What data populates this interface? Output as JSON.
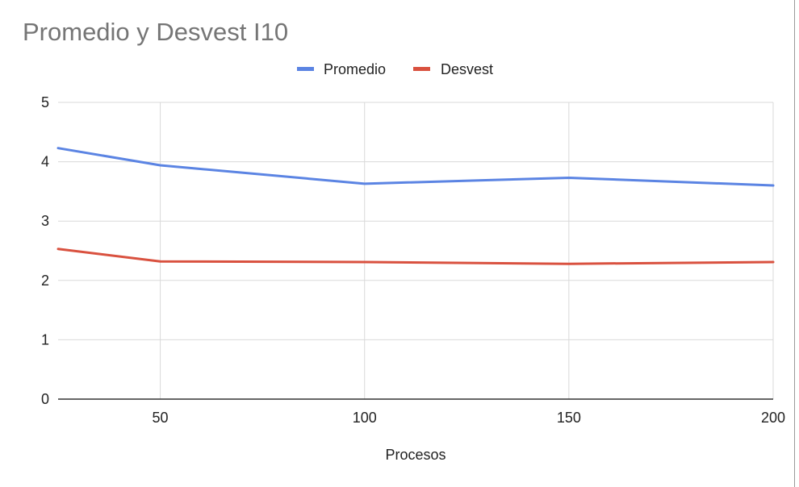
{
  "chart_data": {
    "type": "line",
    "title": "Promedio y Desvest I10",
    "xlabel": "Procesos",
    "ylabel": "",
    "x": [
      25,
      50,
      100,
      150,
      200
    ],
    "xlim": [
      25,
      200
    ],
    "xticks": [
      "50",
      "100",
      "150",
      "200"
    ],
    "xtick_values": [
      50,
      100,
      150,
      200
    ],
    "ylim": [
      0,
      5
    ],
    "yticks": [
      "0",
      "1",
      "2",
      "3",
      "4",
      "5"
    ],
    "ytick_values": [
      0,
      1,
      2,
      3,
      4,
      5
    ],
    "grid": true,
    "legend_position": "top",
    "series": [
      {
        "name": "Promedio",
        "color": "#5b84e3",
        "values": [
          4.23,
          3.94,
          3.63,
          3.73,
          3.6
        ]
      },
      {
        "name": "Desvest",
        "color": "#d9513f",
        "values": [
          2.53,
          2.32,
          2.31,
          2.28,
          2.31
        ]
      }
    ]
  }
}
